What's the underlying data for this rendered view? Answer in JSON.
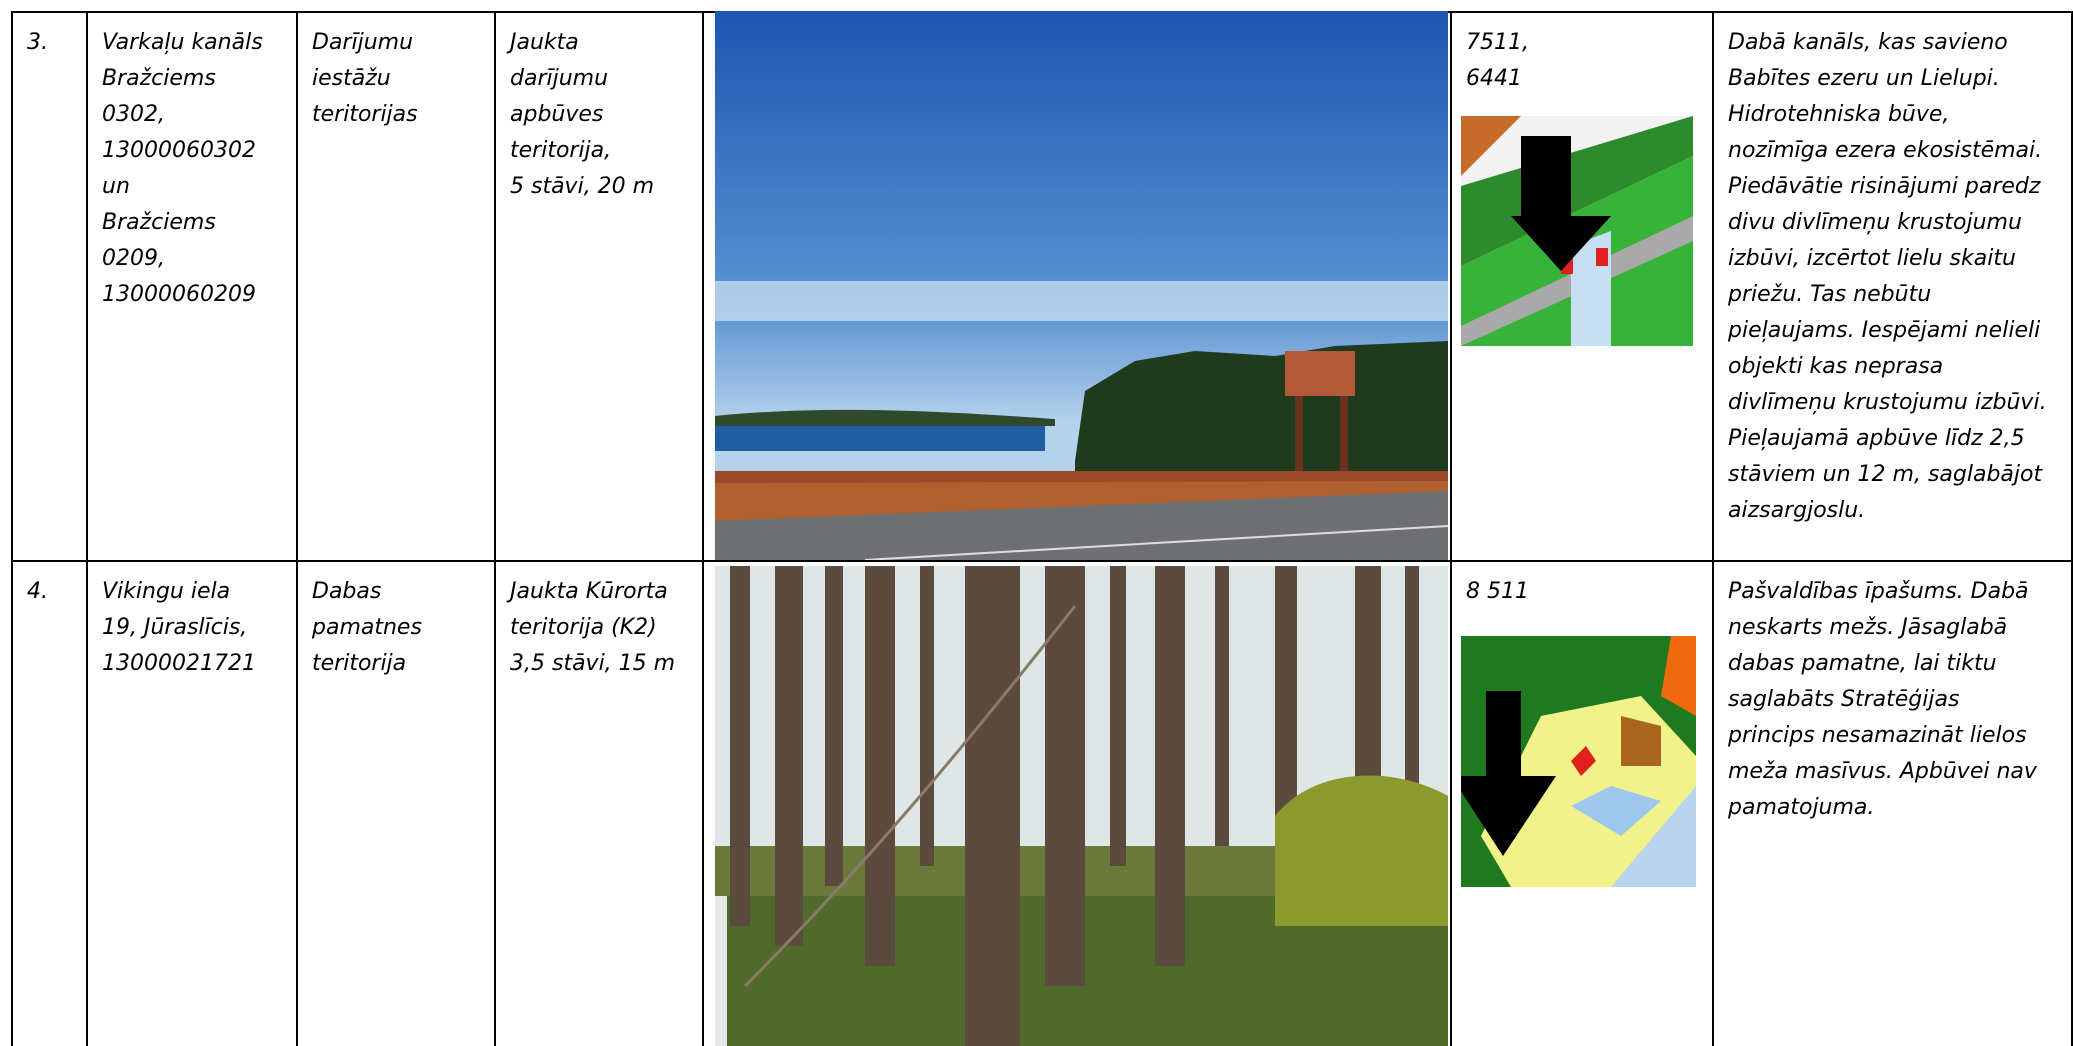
{
  "table": {
    "rows": [
      [
        [
          "3."
        ],
        [
          "Varkaļu kanāls",
          "Bražciems",
          "0302,",
          "13000060302",
          "un",
          "Bražciems",
          "0209,",
          "13000060209"
        ],
        [
          "Darījumu",
          "iestāžu",
          "teritorijas"
        ],
        [
          "Jaukta",
          "darījumu",
          "apbūves",
          "teritorija,",
          "5 stāvi, 20 m"
        ],
        [
          "7511,",
          "6441"
        ],
        [
          "Dabā kanāls, kas savieno",
          "Babītes ezeru un Lielupi.",
          "Hidrotehniska būve,",
          "nozīmīga ezera ekosistēmai.",
          "Piedāvātie risinājumi paredz",
          "divu divlīmeņu krustojumu",
          "izbūvi, izcērtot lielu skaitu",
          "priežu. Tas nebūtu",
          "pieļaujams. Iespējami nelieli",
          "objekti kas neprasa",
          "divlīmeņu krustojumu izbūvi.",
          "Pieļaujamā apbūve līdz 2,5",
          "stāviem un 12 m, saglabājot",
          "aizsargjoslu."
        ]
      ],
      [
        [
          "4."
        ],
        [
          "Vikingu iela",
          "19, Jūraslīcis,",
          "13000021721"
        ],
        [
          "Dabas",
          "pamatnes",
          "teritorija"
        ],
        [
          "Jaukta  Kūrorta",
          "teritorija (K2)",
          "3,5 stāvi, 15 m"
        ],
        [
          "8 511"
        ],
        [
          "Pašvaldības īpašums. Dabā",
          "neskarts mežs. Jāsaglabā",
          "dabas pamatne, lai tiktu",
          "saglabāts Stratēģijas",
          "princips nesamazināt lielos",
          "meža masīvus. Apbūvei nav",
          "pamatojuma."
        ]
      ]
    ]
  }
}
